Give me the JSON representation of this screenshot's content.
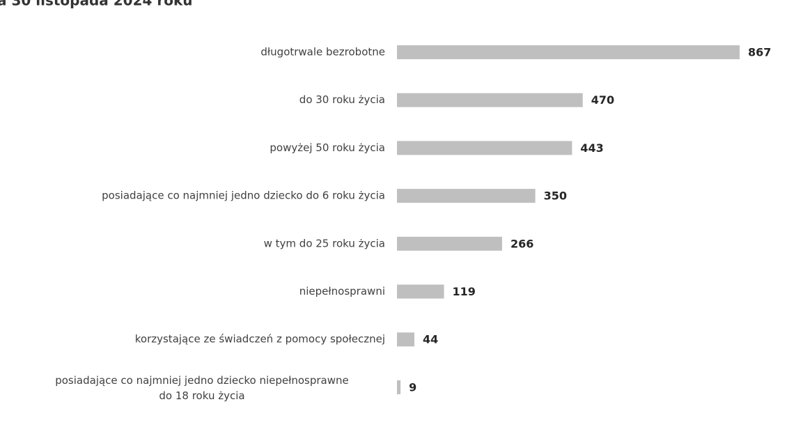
{
  "chart_data": {
    "type": "bar",
    "orientation": "horizontal",
    "title": "a 30 listopada 2024 roku",
    "categories": [
      "długotrwale bezrobotne",
      "do 30 roku życia",
      "powyżej 50 roku życia",
      "posiadające co najmniej jedno dziecko do 6 roku życia",
      "w tym do 25 roku życia",
      "niepełnosprawni",
      "korzystające ze świadczeń z pomocy społecznej",
      "posiadające co najmniej jedno dziecko niepełnosprawne\ndo 18 roku życia"
    ],
    "values": [
      867,
      470,
      443,
      350,
      266,
      119,
      44,
      9
    ],
    "color": "#bfbfbf"
  }
}
